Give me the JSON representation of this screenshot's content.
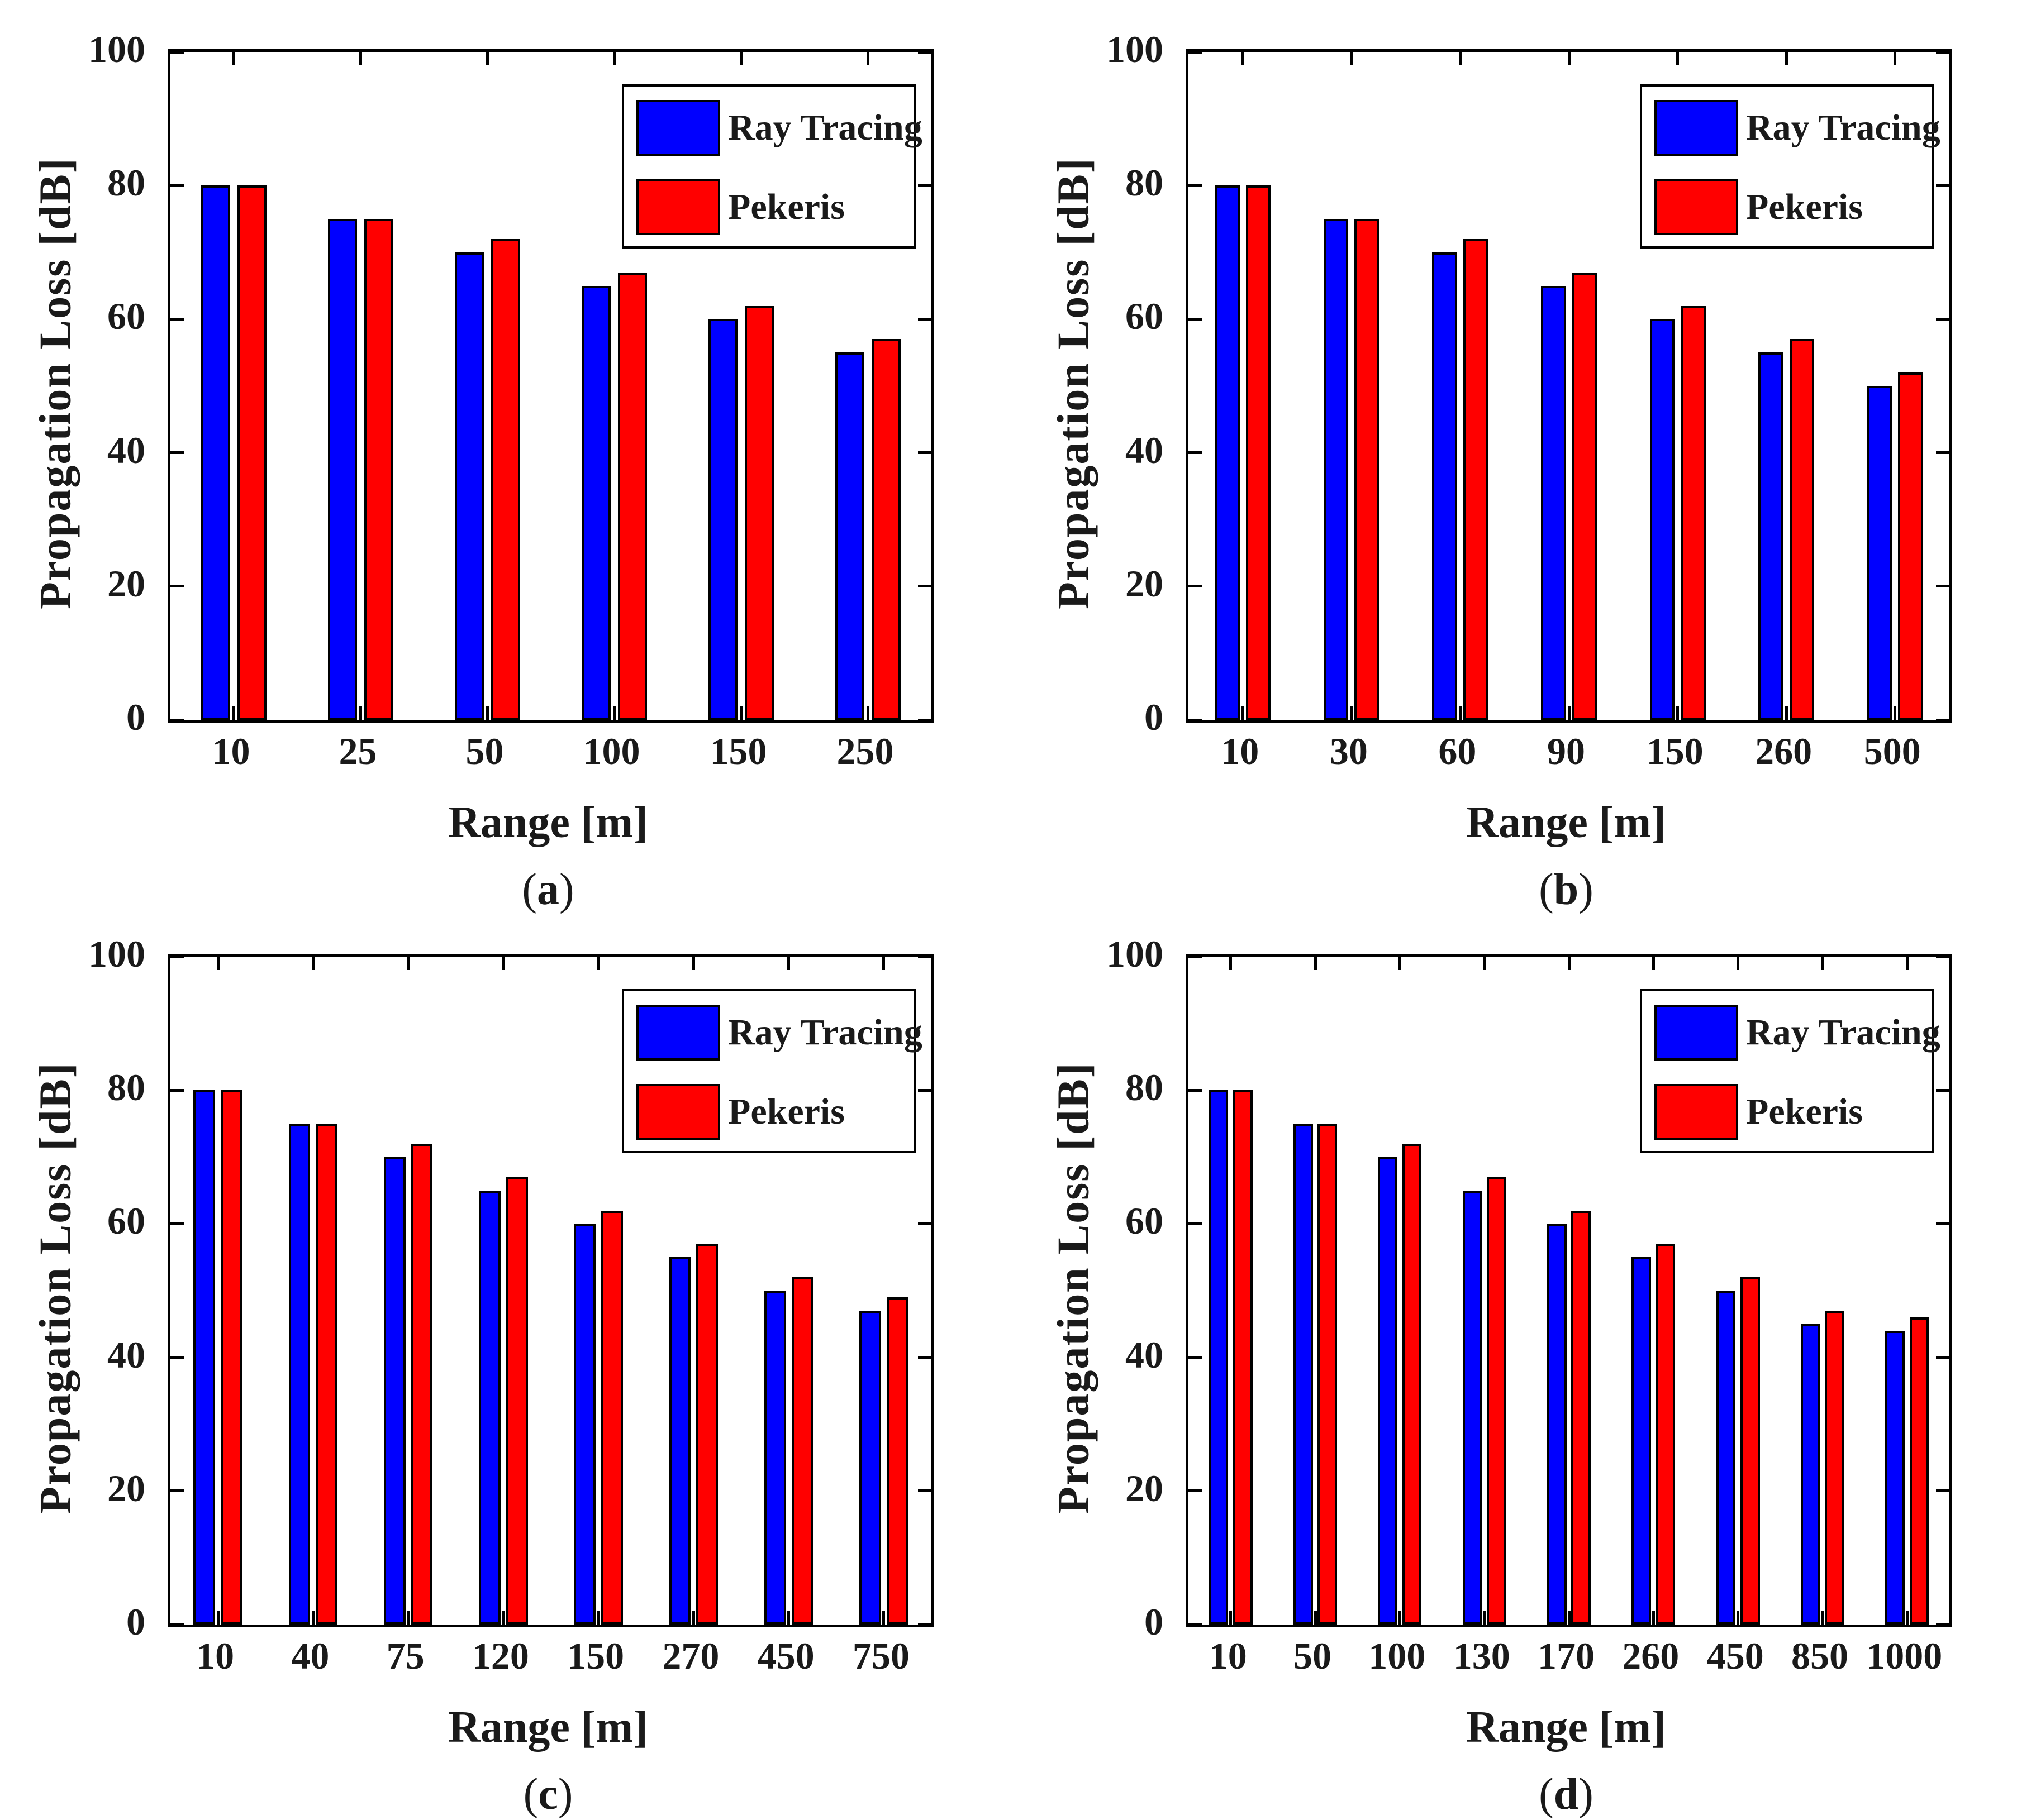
{
  "figure": {
    "background": "#ffffff",
    "axis_color": "#000000",
    "text_color": "#1a1a1a",
    "series_colors": {
      "ray_tracing": "#0000ff",
      "pekeris": "#ff0000"
    }
  },
  "chart_data": [
    {
      "type": "bar",
      "tag": {
        "prefix": "(",
        "letter": "a",
        "suffix": ")"
      },
      "xlabel": "Range [m]",
      "ylabel": "Propagation Loss [dB]",
      "ylim": [
        0,
        100
      ],
      "yticks": [
        0,
        20,
        40,
        60,
        80,
        100
      ],
      "grid": false,
      "legend_position": "top-right",
      "categories": [
        "10",
        "25",
        "50",
        "100",
        "150",
        "250"
      ],
      "series": [
        {
          "name": "Ray Tracing",
          "color": "#0000ff",
          "values": [
            80,
            75,
            70,
            65,
            60,
            55
          ]
        },
        {
          "name": "Pekeris",
          "color": "#ff0000",
          "values": [
            80,
            75,
            72,
            67,
            62,
            57
          ]
        }
      ]
    },
    {
      "type": "bar",
      "tag": {
        "prefix": "(",
        "letter": "b",
        "suffix": ")"
      },
      "xlabel": "Range [m]",
      "ylabel": "Propagation Loss [dB]",
      "ylim": [
        0,
        100
      ],
      "yticks": [
        0,
        20,
        40,
        60,
        80,
        100
      ],
      "grid": false,
      "legend_position": "top-right",
      "categories": [
        "10",
        "30",
        "60",
        "90",
        "150",
        "260",
        "500"
      ],
      "series": [
        {
          "name": "Ray Tracing",
          "color": "#0000ff",
          "values": [
            80,
            75,
            70,
            65,
            60,
            55,
            50
          ]
        },
        {
          "name": "Pekeris",
          "color": "#ff0000",
          "values": [
            80,
            75,
            72,
            67,
            62,
            57,
            52
          ]
        }
      ]
    },
    {
      "type": "bar",
      "tag": {
        "prefix": "(",
        "letter": "c",
        "suffix": ")"
      },
      "xlabel": "Range [m]",
      "ylabel": "Propagation Loss [dB]",
      "ylim": [
        0,
        100
      ],
      "yticks": [
        0,
        20,
        40,
        60,
        80,
        100
      ],
      "grid": false,
      "legend_position": "top-right",
      "categories": [
        "10",
        "40",
        "75",
        "120",
        "150",
        "270",
        "450",
        "750"
      ],
      "series": [
        {
          "name": "Ray Tracing",
          "color": "#0000ff",
          "values": [
            80,
            75,
            70,
            65,
            60,
            55,
            50,
            47
          ]
        },
        {
          "name": "Pekeris",
          "color": "#ff0000",
          "values": [
            80,
            75,
            72,
            67,
            62,
            57,
            52,
            49
          ]
        }
      ]
    },
    {
      "type": "bar",
      "tag": {
        "prefix": "(",
        "letter": "d",
        "suffix": ")"
      },
      "xlabel": "Range [m]",
      "ylabel": "Propagation Loss [dB]",
      "ylim": [
        0,
        100
      ],
      "yticks": [
        0,
        20,
        40,
        60,
        80,
        100
      ],
      "grid": false,
      "legend_position": "top-right",
      "categories": [
        "10",
        "50",
        "100",
        "130",
        "170",
        "260",
        "450",
        "850",
        "1000"
      ],
      "series": [
        {
          "name": "Ray Tracing",
          "color": "#0000ff",
          "values": [
            80,
            75,
            70,
            65,
            60,
            55,
            50,
            45,
            44
          ]
        },
        {
          "name": "Pekeris",
          "color": "#ff0000",
          "values": [
            80,
            75,
            72,
            67,
            62,
            57,
            52,
            47,
            46
          ]
        }
      ]
    }
  ]
}
